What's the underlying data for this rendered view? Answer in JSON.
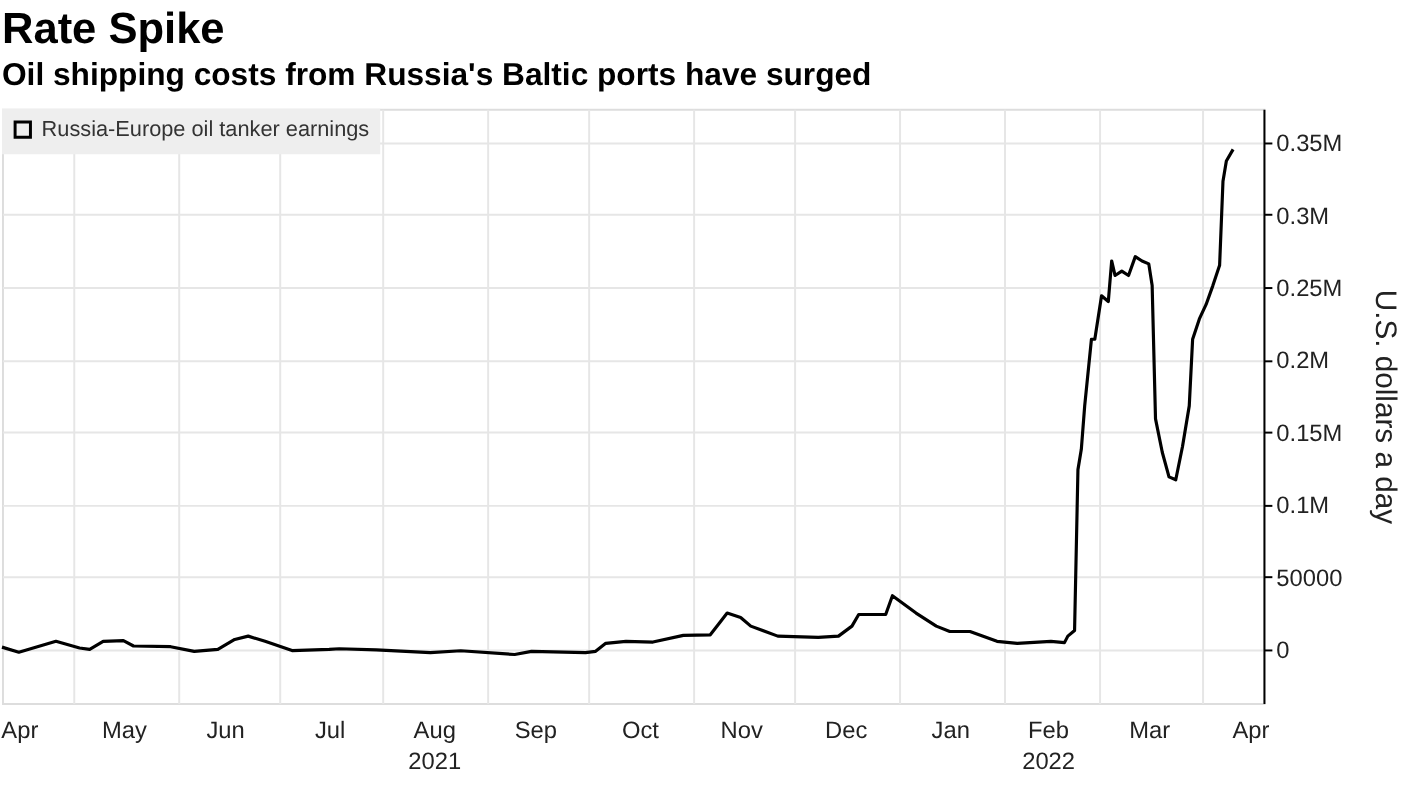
{
  "chart_data": {
    "type": "line",
    "title": "Rate Spike",
    "subtitle": "Oil shipping costs from Russia's Baltic ports have surged",
    "ylabel": "U.S. dollars a day",
    "x": [
      "2021-04-10",
      "2021-04-15",
      "2021-04-26",
      "2021-05-03",
      "2021-05-06",
      "2021-05-10",
      "2021-05-16",
      "2021-05-19",
      "2021-05-30",
      "2021-06-06",
      "2021-06-13",
      "2021-06-18",
      "2021-06-22",
      "2021-06-27",
      "2021-07-05",
      "2021-07-16",
      "2021-07-19",
      "2021-07-30",
      "2021-08-15",
      "2021-08-24",
      "2021-09-09",
      "2021-09-14",
      "2021-09-30",
      "2021-10-03",
      "2021-10-06",
      "2021-10-12",
      "2021-10-20",
      "2021-10-29",
      "2021-11-06",
      "2021-11-09",
      "2021-11-11",
      "2021-11-15",
      "2021-11-18",
      "2021-11-26",
      "2021-12-08",
      "2021-12-14",
      "2021-12-18",
      "2021-12-20",
      "2021-12-28",
      "2021-12-30",
      "2022-01-06",
      "2022-01-12",
      "2022-01-16",
      "2022-01-22",
      "2022-01-30",
      "2022-02-05",
      "2022-02-15",
      "2022-02-19",
      "2022-02-20",
      "2022-02-22",
      "2022-02-23",
      "2022-02-24",
      "2022-02-25",
      "2022-02-27",
      "2022-02-28",
      "2022-03-02",
      "2022-03-04",
      "2022-03-05",
      "2022-03-06",
      "2022-03-08",
      "2022-03-10",
      "2022-03-12",
      "2022-03-14",
      "2022-03-16",
      "2022-03-17",
      "2022-03-18",
      "2022-03-20",
      "2022-03-22",
      "2022-03-24",
      "2022-03-26",
      "2022-03-28",
      "2022-03-29",
      "2022-03-31",
      "2022-04-02",
      "2022-04-04",
      "2022-04-06",
      "2022-04-07",
      "2022-04-08",
      "2022-04-10"
    ],
    "series": [
      {
        "name": "Russia-Europe oil tanker earnings",
        "color": "#000000",
        "values": [
          1500,
          -2000,
          5500,
          900,
          0,
          5500,
          6000,
          2300,
          1800,
          -1400,
          0,
          6800,
          9100,
          5500,
          -900,
          0,
          400,
          -400,
          -2300,
          -1000,
          -3600,
          -1400,
          -2300,
          -1400,
          4100,
          5500,
          5000,
          9600,
          10000,
          19000,
          25000,
          22000,
          16000,
          9100,
          8200,
          9100,
          16000,
          24000,
          24000,
          37000,
          25000,
          16000,
          12300,
          12300,
          5500,
          4100,
          5500,
          4600,
          9100,
          13000,
          124000,
          138000,
          168000,
          214000,
          214000,
          244000,
          240000,
          268000,
          258000,
          261000,
          258000,
          271000,
          268000,
          266000,
          251000,
          159000,
          136000,
          119000,
          117000,
          140000,
          168000,
          214000,
          228000,
          238000,
          251000,
          265000,
          323000,
          337000,
          345000
        ]
      }
    ],
    "xlim": [
      "2021-04-10",
      "2022-04-19"
    ],
    "xticks": [
      {
        "value": "2021-04-15",
        "label": "Apr"
      },
      {
        "value": "2021-05-01",
        "label": null
      },
      {
        "value": "2021-05-16",
        "label": "May"
      },
      {
        "value": "2021-06-01",
        "label": null
      },
      {
        "value": "2021-06-15",
        "label": "Jun"
      },
      {
        "value": "2021-07-01",
        "label": null
      },
      {
        "value": "2021-07-16",
        "label": "Jul"
      },
      {
        "value": "2021-08-01",
        "label": null
      },
      {
        "value": "2021-08-16",
        "label": "Aug\n2021"
      },
      {
        "value": "2021-09-01",
        "label": null
      },
      {
        "value": "2021-09-15",
        "label": "Sep"
      },
      {
        "value": "2021-10-01",
        "label": null
      },
      {
        "value": "2021-10-16",
        "label": "Oct"
      },
      {
        "value": "2021-11-01",
        "label": null
      },
      {
        "value": "2021-11-15",
        "label": "Nov"
      },
      {
        "value": "2021-12-01",
        "label": null
      },
      {
        "value": "2021-12-16",
        "label": "Dec"
      },
      {
        "value": "2022-01-01",
        "label": null
      },
      {
        "value": "2022-01-16",
        "label": "Jan"
      },
      {
        "value": "2022-02-01",
        "label": null
      },
      {
        "value": "2022-02-14",
        "label": "Feb\n2022"
      },
      {
        "value": "2022-03-01",
        "label": null
      },
      {
        "value": "2022-03-16",
        "label": "Mar"
      },
      {
        "value": "2022-04-01",
        "label": null
      },
      {
        "value": "2022-04-15",
        "label": "Apr"
      }
    ],
    "ylim": [
      -37000,
      373000
    ],
    "yticks": [
      0,
      50000,
      {
        "value": 100000,
        "label": "0.1M"
      },
      {
        "value": 150000,
        "label": "0.15M"
      },
      {
        "value": 200000,
        "label": "0.2M"
      },
      {
        "value": 250000,
        "label": "0.25M"
      },
      {
        "value": 300000,
        "label": "0.3M"
      },
      {
        "value": 350000,
        "label": "0.35M"
      }
    ],
    "grid": true,
    "legend": "top left",
    "marker": "none",
    "line_style": "solid"
  }
}
